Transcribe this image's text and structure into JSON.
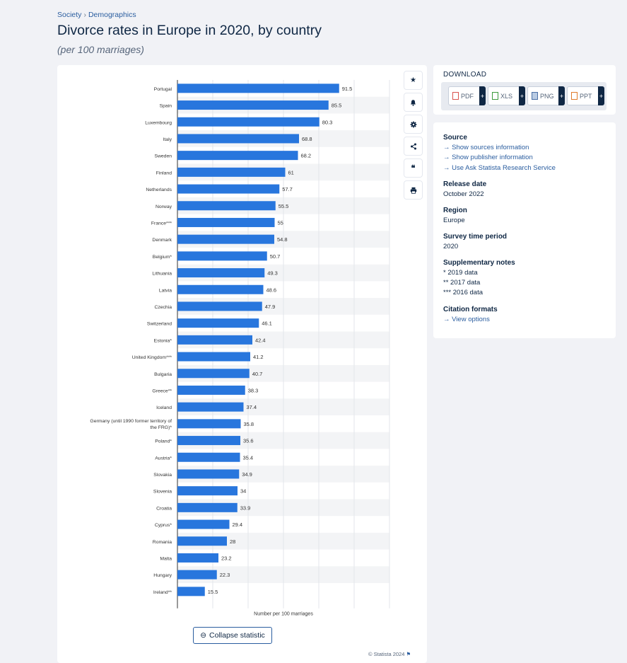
{
  "breadcrumb": {
    "item1": "Society",
    "sep": "›",
    "item2": "Demographics"
  },
  "title": "Divorce rates in Europe in 2020, by country",
  "subtitle": "(per 100 marriages)",
  "tools": [
    "star-icon",
    "bell-icon",
    "gear-icon",
    "share-icon",
    "quote-icon",
    "print-icon"
  ],
  "collapse_label": "Collapse statistic",
  "copyright": "© Statista 2024",
  "download": {
    "title": "DOWNLOAD",
    "buttons": [
      {
        "label": "PDF",
        "color": "#d9534f"
      },
      {
        "label": "XLS",
        "color": "#3c9a3c"
      },
      {
        "label": "PNG",
        "color": "#4a6fa5"
      },
      {
        "label": "PPT",
        "color": "#e07b2a"
      }
    ]
  },
  "info": {
    "source_h": "Source",
    "source_links": [
      "Show sources information",
      "Show publisher information",
      "Use Ask Statista Research Service"
    ],
    "release_h": "Release date",
    "release": "October 2022",
    "region_h": "Region",
    "region": "Europe",
    "period_h": "Survey time period",
    "period": "2020",
    "notes_h": "Supplementary notes",
    "notes": [
      "* 2019 data",
      "** 2017 data",
      "*** 2016 data"
    ],
    "citation_h": "Citation formats",
    "citation_link": "View options"
  },
  "chart_data": {
    "type": "bar",
    "orientation": "horizontal",
    "xlabel": "Number per 100 marriages",
    "xlim": [
      0,
      120
    ],
    "grid": true,
    "bar_color": "#2876dd",
    "categories": [
      "Portugal",
      "Spain",
      "Luxembourg",
      "Italy",
      "Sweden",
      "Finland",
      "Netherlands",
      "Norway",
      "France***",
      "Denmark",
      "Belgium*",
      "Lithuania",
      "Latvia",
      "Czechia",
      "Switzerland",
      "Estonia*",
      "United Kingdom***",
      "Bulgaria",
      "Greece**",
      "Iceland",
      "Germany (until 1990 former territory of the FRG)*",
      "Poland*",
      "Austria*",
      "Slovakia",
      "Slovenia",
      "Croatia",
      "Cyprus*",
      "Romania",
      "Malta",
      "Hungary",
      "Ireland**"
    ],
    "values": [
      91.5,
      85.5,
      80.3,
      68.8,
      68.2,
      61,
      57.7,
      55.5,
      55,
      54.8,
      50.7,
      49.3,
      48.6,
      47.9,
      46.1,
      42.4,
      41.2,
      40.7,
      38.3,
      37.4,
      35.8,
      35.6,
      35.4,
      34.9,
      34,
      33.9,
      29.4,
      28,
      23.2,
      22.3,
      15.5
    ]
  }
}
